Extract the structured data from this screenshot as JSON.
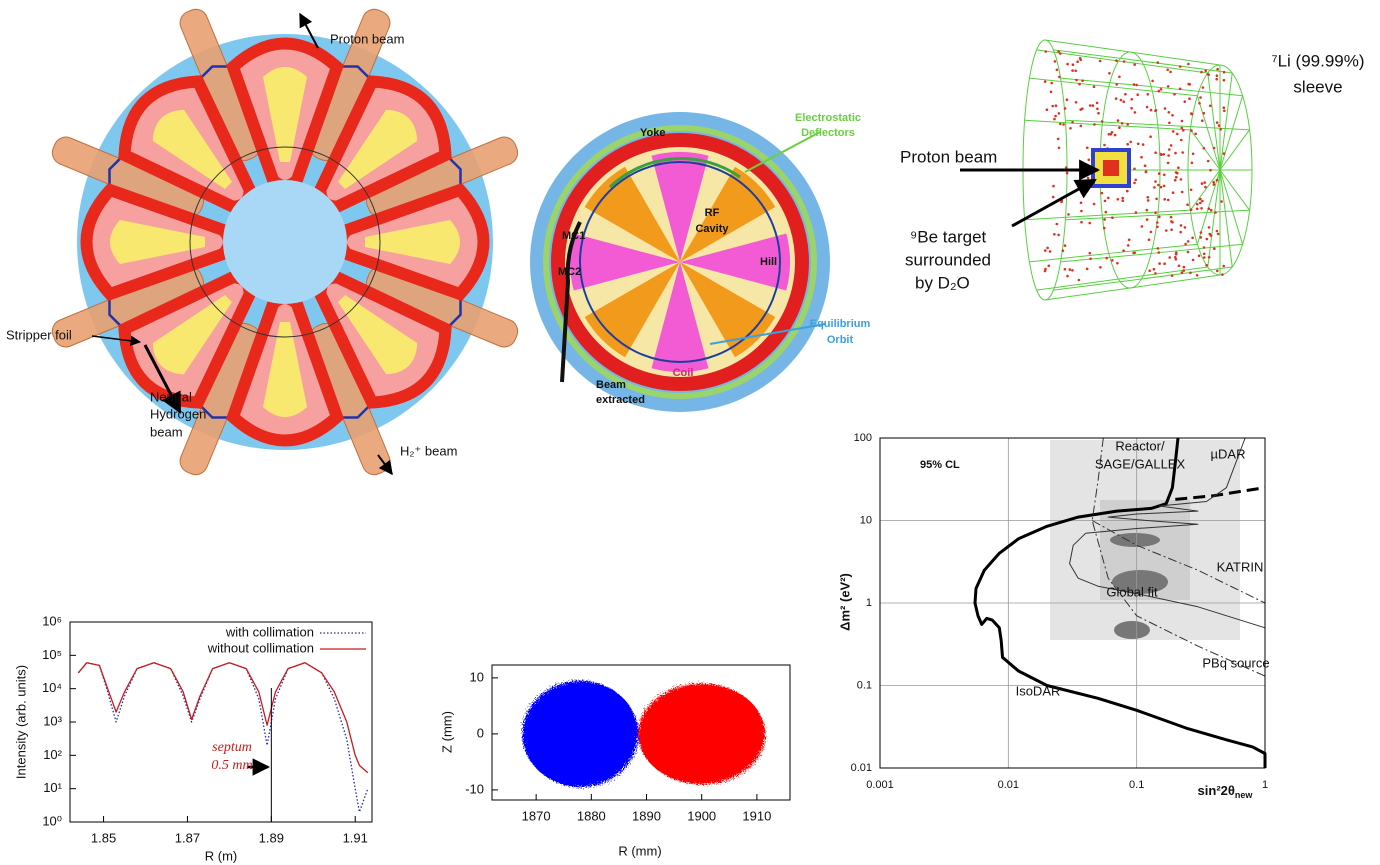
{
  "cyclotron_diagram": {
    "proton_beam": "Proton beam",
    "stripper_foil": "Stripper foil",
    "neutral_beam": [
      "Neutral",
      "Hydrogen",
      "beam"
    ],
    "h2_beam": "H₂⁺ beam"
  },
  "cyclotron_schematic": {
    "yoke": "Yoke",
    "deflectors": [
      "Electrostatic",
      "Deflectors"
    ],
    "rf_cavity": [
      "RF",
      "Cavity"
    ],
    "mc1": "MC1",
    "mc2": "MC2",
    "hill": "Hill",
    "orbit": [
      "Equilibrium",
      "Orbit"
    ],
    "coil": "Coil",
    "beam_extracted": [
      "Beam",
      "extracted"
    ]
  },
  "target_diagram": {
    "sleeve": [
      "⁷Li (99.99%)",
      "sleeve"
    ],
    "proton_beam": "Proton beam",
    "target": [
      "⁹Be target",
      "surrounded",
      "by D₂O"
    ]
  },
  "chart_data": [
    {
      "type": "line",
      "xlabel": "R (m)",
      "ylabel": "Intensity (arb. units)",
      "log_y": true,
      "xlim": [
        1.842,
        1.914
      ],
      "ylim": [
        1,
        1000000
      ],
      "xticks": [
        1.85,
        1.87,
        1.89,
        1.91
      ],
      "yticks": [
        {
          "value": 1,
          "label": "10⁰"
        },
        {
          "value": 10,
          "label": "10¹"
        },
        {
          "value": 100,
          "label": "10²"
        },
        {
          "value": 1000,
          "label": "10³"
        },
        {
          "value": 10000,
          "label": "10⁴"
        },
        {
          "value": 100000,
          "label": "10⁵"
        },
        {
          "value": 1000000,
          "label": "10⁶"
        }
      ],
      "x": [
        1.844,
        1.846,
        1.849,
        1.851,
        1.853,
        1.855,
        1.858,
        1.862,
        1.866,
        1.869,
        1.871,
        1.873,
        1.876,
        1.88,
        1.884,
        1.887,
        1.889,
        1.891,
        1.894,
        1.898,
        1.902,
        1.905,
        1.908,
        1.91,
        1.911,
        1.913
      ],
      "series": [
        {
          "name": "with collimation",
          "color": "#2a2aa8",
          "dash": "dotted",
          "values": [
            30000,
            60000,
            50000,
            8000,
            1000,
            6000,
            40000,
            60000,
            40000,
            6000,
            1000,
            5000,
            40000,
            60000,
            40000,
            5000,
            200,
            5000,
            40000,
            60000,
            30000,
            5000,
            300,
            10,
            2,
            10
          ]
        },
        {
          "name": "without collimation",
          "color": "#cc1a1a",
          "values": [
            30000,
            60000,
            50000,
            10000,
            2000,
            8000,
            40000,
            60000,
            40000,
            8000,
            1200,
            6000,
            40000,
            60000,
            40000,
            8000,
            800,
            8000,
            40000,
            60000,
            30000,
            8000,
            1000,
            100,
            50,
            30
          ]
        }
      ],
      "annotation": [
        "septum",
        "0.5 mm"
      ],
      "septum_x": 1.89
    },
    {
      "type": "scatter",
      "xlabel": "R (mm)",
      "ylabel": "Z (mm)",
      "xlim": [
        1862,
        1916
      ],
      "ylim": [
        -11.8,
        12.3
      ],
      "xticks": [
        1870,
        1880,
        1890,
        1900,
        1910
      ],
      "yticks": [
        -10,
        0,
        10
      ],
      "series": [
        {
          "color": "#0000ff",
          "x": 1878,
          "y": 0,
          "x_spread": 10.5,
          "y_spread": 9.5
        },
        {
          "color": "#ff0000",
          "x": 1900,
          "y": 0,
          "x_spread": 11.5,
          "y_spread": 9
        }
      ]
    },
    {
      "type": "line",
      "xlabel": "sin²2θ",
      "xlabel_subscript": "new",
      "ylabel": "Δm² (eV²)",
      "log_x": true,
      "log_y": true,
      "grid": true,
      "xlim": [
        0.001,
        1
      ],
      "ylim": [
        0.01,
        100
      ],
      "xticks": [
        0.001,
        0.01,
        0.1,
        1
      ],
      "yticks": [
        0.01,
        0.1,
        1,
        10,
        100
      ],
      "annotations": [
        "95% CL",
        "Reactor/",
        "SAGE/GALLEX",
        "µDAR",
        "KATRIN",
        "Global fit",
        "PBq source",
        "IsoDAR"
      ],
      "series": [
        {
          "color": "#000000",
          "width": 3,
          "x": [
            1,
            1,
            0.8,
            0.5,
            0.25,
            0.1,
            0.05,
            0.02,
            0.012,
            0.009,
            0.0088,
            0.0085,
            0.0075,
            0.0068,
            0.0062,
            0.0058,
            0.0055,
            0.0056,
            0.0065,
            0.0085,
            0.012,
            0.02,
            0.035,
            0.07,
            0.13,
            0.17,
            0.19,
            0.2,
            0.21
          ],
          "values": [
            0.01,
            0.015,
            0.018,
            0.022,
            0.03,
            0.05,
            0.07,
            0.1,
            0.15,
            0.22,
            0.35,
            0.5,
            0.62,
            0.65,
            0.55,
            0.7,
            1,
            1.5,
            2.5,
            4,
            6,
            8.5,
            11,
            13,
            14,
            16,
            25,
            50,
            100
          ]
        },
        {
          "color": "#000000",
          "width": 3,
          "dash": "dashed",
          "x": [
            0.2,
            0.4,
            0.7,
            1
          ],
          "values": [
            18,
            20,
            23,
            25
          ]
        },
        {
          "color": "#333333",
          "width": 1,
          "x": [
            1,
            0.3,
            0.1,
            0.05,
            0.035,
            0.03,
            0.032,
            0.04,
            0.1,
            0.3,
            0.12,
            0.06,
            0.1,
            0.3,
            0.15,
            0.35,
            0.5,
            0.7
          ],
          "values": [
            0.5,
            0.9,
            1.3,
            1.6,
            2,
            3,
            5,
            7,
            8,
            9,
            10,
            11,
            12,
            13,
            15,
            17,
            25,
            100
          ]
        },
        {
          "color": "#333333",
          "width": 1,
          "dash": "dashdot",
          "x": [
            0.045,
            0.1,
            0.3,
            1
          ],
          "values": [
            10,
            5,
            2.5,
            1
          ]
        },
        {
          "color": "#333333",
          "width": 1,
          "dash": "dashdot",
          "x": [
            0.055,
            0.05,
            0.045,
            0.06,
            0.1,
            0.3,
            1
          ],
          "values": [
            100,
            30,
            10,
            2,
            0.7,
            0.3,
            0.13
          ]
        }
      ]
    }
  ]
}
